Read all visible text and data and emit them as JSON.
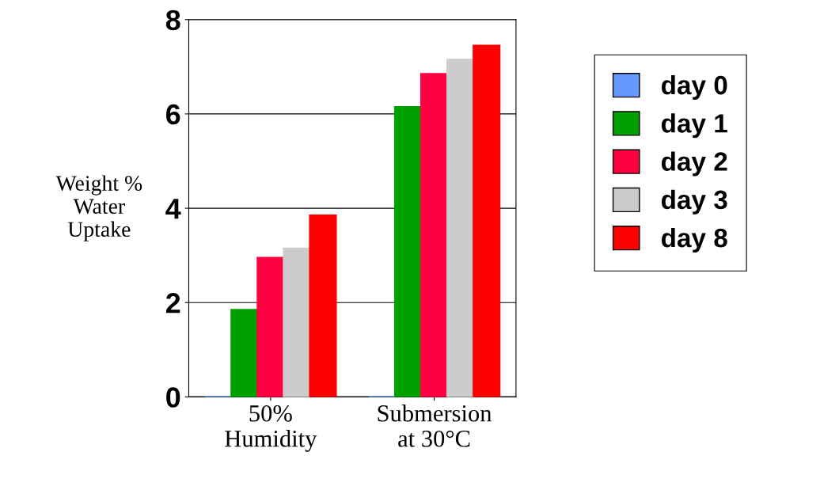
{
  "chart_data": {
    "type": "bar",
    "ylabel": "Weight %\nWater\nUptake",
    "categories": [
      "50%\nHumidity",
      "Submersion\nat 30°C"
    ],
    "series": [
      {
        "name": "day 0",
        "color": "#6699ff",
        "values": [
          0,
          0
        ]
      },
      {
        "name": "day 1",
        "color": "#00a000",
        "values": [
          1.85,
          6.15
        ]
      },
      {
        "name": "day 2",
        "color": "#ff0040",
        "values": [
          2.95,
          6.85
        ]
      },
      {
        "name": "day 3",
        "color": "#cccccc",
        "values": [
          3.15,
          7.15
        ]
      },
      {
        "name": "day 8",
        "color": "#ff0000",
        "values": [
          3.85,
          7.45
        ]
      }
    ],
    "ylim": [
      0,
      8
    ],
    "yticks": [
      0,
      2,
      4,
      6,
      8
    ],
    "grid": "y",
    "legend": "right"
  }
}
